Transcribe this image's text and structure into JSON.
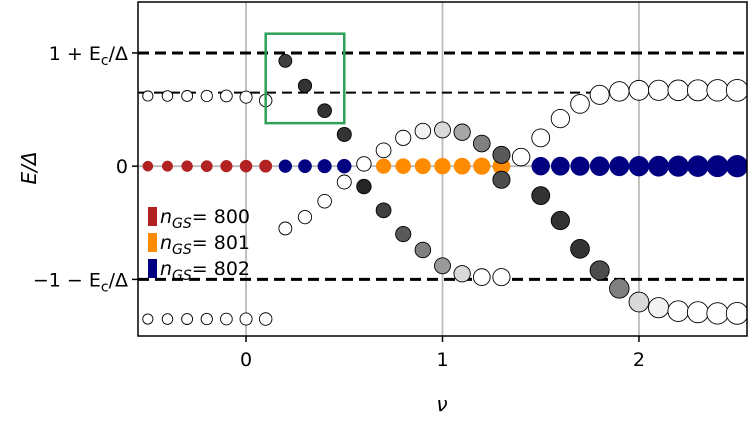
{
  "chart_data": {
    "type": "scatter",
    "xlabel": "ν",
    "ylabel": "E/Δ",
    "xlim": [
      -0.55,
      2.55
    ],
    "ylim": [
      -1.5,
      1.45
    ],
    "grid": "vertical-only",
    "xticks": [
      {
        "value": 0,
        "label": "0"
      },
      {
        "value": 1,
        "label": "1"
      },
      {
        "value": 2,
        "label": "2"
      }
    ],
    "yticks": [
      {
        "value": 1.0,
        "label": "1 + E_c/Δ"
      },
      {
        "value": 0,
        "label": "0"
      },
      {
        "value": -1.0,
        "label": "−1 − E_c/Δ"
      }
    ],
    "reference_lines": {
      "thick_dashed": [
        1.0,
        -1.0
      ],
      "thin_dashed": 0.65,
      "zero_line_color": "#bbbbbb"
    },
    "highlight_box": {
      "x": [
        0.1,
        0.5
      ],
      "y": [
        0.38,
        1.17
      ],
      "color": "#2ea05a"
    },
    "legend": {
      "placement": "left",
      "entries": [
        {
          "name": "800",
          "label": "n_GS = 800",
          "color": "#b22222"
        },
        {
          "name": "801",
          "label": "n_GS = 801",
          "color": "#ff8c00"
        },
        {
          "name": "802",
          "label": "n_GS = 802",
          "color": "#000080"
        }
      ]
    },
    "ground_states": [
      {
        "name": "800",
        "color": "#b22222",
        "x": [
          -0.5,
          -0.4,
          -0.3,
          -0.2,
          -0.1,
          0.0,
          0.1
        ]
      },
      {
        "name": "802",
        "color": "#000080",
        "x": [
          0.2,
          0.3,
          0.4,
          0.5
        ]
      },
      {
        "name": "801",
        "color": "#ff8c00",
        "x": [
          0.7,
          0.8,
          0.9,
          1.0,
          1.1,
          1.2,
          1.3
        ]
      },
      {
        "name": "802",
        "color": "#000080",
        "x": [
          1.5,
          1.6,
          1.7,
          1.8,
          1.9,
          2.0,
          2.1,
          2.2,
          2.3,
          2.4,
          2.5
        ]
      }
    ],
    "excited_states": [
      {
        "x": -0.5,
        "y": 0.62,
        "shade": 1.0
      },
      {
        "x": -0.4,
        "y": 0.62,
        "shade": 1.0
      },
      {
        "x": -0.3,
        "y": 0.62,
        "shade": 1.0
      },
      {
        "x": -0.2,
        "y": 0.62,
        "shade": 1.0
      },
      {
        "x": -0.1,
        "y": 0.62,
        "shade": 1.0
      },
      {
        "x": 0.0,
        "y": 0.61,
        "shade": 1.0
      },
      {
        "x": 0.1,
        "y": 0.58,
        "shade": 1.0
      },
      {
        "x": 0.2,
        "y": 0.93,
        "shade": 0.25
      },
      {
        "x": 0.3,
        "y": 0.71,
        "shade": 0.2
      },
      {
        "x": 0.4,
        "y": 0.49,
        "shade": 0.2
      },
      {
        "x": 0.5,
        "y": 0.28,
        "shade": 0.2
      },
      {
        "x": 0.6,
        "y": 0.02,
        "shade": 1.0
      },
      {
        "x": 0.7,
        "y": 0.14,
        "shade": 1.0
      },
      {
        "x": 0.8,
        "y": 0.25,
        "shade": 1.0
      },
      {
        "x": 0.9,
        "y": 0.31,
        "shade": 0.95
      },
      {
        "x": 1.0,
        "y": 0.32,
        "shade": 0.85
      },
      {
        "x": 1.1,
        "y": 0.3,
        "shade": 0.65
      },
      {
        "x": 1.2,
        "y": 0.2,
        "shade": 0.5
      },
      {
        "x": 1.3,
        "y": 0.1,
        "shade": 0.35
      },
      {
        "x": 1.4,
        "y": 0.08,
        "shade": 1.0
      },
      {
        "x": 1.5,
        "y": 0.25,
        "shade": 1.0
      },
      {
        "x": 1.6,
        "y": 0.42,
        "shade": 1.0
      },
      {
        "x": 1.7,
        "y": 0.55,
        "shade": 1.0
      },
      {
        "x": 1.8,
        "y": 0.63,
        "shade": 1.0
      },
      {
        "x": 1.9,
        "y": 0.66,
        "shade": 1.0
      },
      {
        "x": 2.0,
        "y": 0.67,
        "shade": 1.0
      },
      {
        "x": 2.1,
        "y": 0.67,
        "shade": 1.0
      },
      {
        "x": 2.2,
        "y": 0.67,
        "shade": 1.0
      },
      {
        "x": 2.3,
        "y": 0.67,
        "shade": 1.0
      },
      {
        "x": 2.4,
        "y": 0.67,
        "shade": 1.0
      },
      {
        "x": 2.5,
        "y": 0.67,
        "shade": 1.0
      },
      {
        "x": 0.2,
        "y": -0.55,
        "shade": 1.0
      },
      {
        "x": 0.3,
        "y": -0.45,
        "shade": 1.0
      },
      {
        "x": 0.4,
        "y": -0.31,
        "shade": 1.0
      },
      {
        "x": 0.5,
        "y": -0.14,
        "shade": 1.0
      },
      {
        "x": 0.6,
        "y": -0.18,
        "shade": 0.15
      },
      {
        "x": 0.7,
        "y": -0.39,
        "shade": 0.25
      },
      {
        "x": 0.8,
        "y": -0.6,
        "shade": 0.35
      },
      {
        "x": 0.9,
        "y": -0.74,
        "shade": 0.5
      },
      {
        "x": 1.0,
        "y": -0.88,
        "shade": 0.6
      },
      {
        "x": 1.1,
        "y": -0.95,
        "shade": 0.85
      },
      {
        "x": 1.2,
        "y": -0.98,
        "shade": 1.0
      },
      {
        "x": 1.3,
        "y": -0.98,
        "shade": 1.0
      },
      {
        "x": 1.3,
        "y": -0.12,
        "shade": 0.3
      },
      {
        "x": 1.5,
        "y": -0.26,
        "shade": 0.2
      },
      {
        "x": 1.6,
        "y": -0.48,
        "shade": 0.2
      },
      {
        "x": 1.7,
        "y": -0.73,
        "shade": 0.2
      },
      {
        "x": 1.8,
        "y": -0.92,
        "shade": 0.3
      },
      {
        "x": 1.9,
        "y": -1.08,
        "shade": 0.5
      },
      {
        "x": 2.0,
        "y": -1.2,
        "shade": 0.85
      },
      {
        "x": 2.1,
        "y": -1.25,
        "shade": 0.95
      },
      {
        "x": 2.2,
        "y": -1.28,
        "shade": 1.0
      },
      {
        "x": 2.3,
        "y": -1.29,
        "shade": 1.0
      },
      {
        "x": 2.4,
        "y": -1.3,
        "shade": 1.0
      },
      {
        "x": 2.5,
        "y": -1.3,
        "shade": 1.0
      },
      {
        "x": -0.5,
        "y": -1.35,
        "shade": 1.0
      },
      {
        "x": -0.4,
        "y": -1.35,
        "shade": 1.0
      },
      {
        "x": -0.3,
        "y": -1.35,
        "shade": 1.0
      },
      {
        "x": -0.2,
        "y": -1.35,
        "shade": 1.0
      },
      {
        "x": -0.1,
        "y": -1.35,
        "shade": 1.0
      },
      {
        "x": 0.0,
        "y": -1.35,
        "shade": 1.0
      },
      {
        "x": 0.1,
        "y": -1.35,
        "shade": 1.0
      }
    ]
  }
}
